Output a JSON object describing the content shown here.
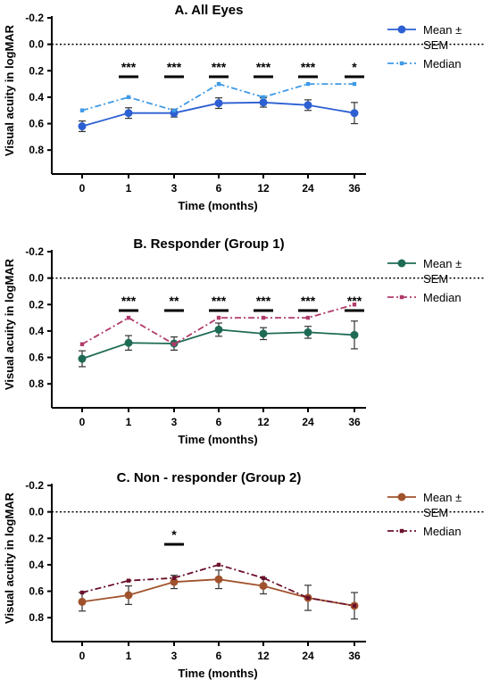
{
  "chart_data": [
    {
      "type": "line",
      "title": "A. All Eyes",
      "xlabel": "Time (months)",
      "ylabel": "Visual acuity in logMAR",
      "categories": [
        "0",
        "1",
        "3",
        "6",
        "12",
        "24",
        "36"
      ],
      "ylim": [
        0.9,
        -0.2
      ],
      "yticks": [
        "-0.2",
        "0.0",
        "0.2",
        "0.4",
        "0.6",
        "0.8"
      ],
      "reference_line": 0.0,
      "series": [
        {
          "name": "Mean ± SEM",
          "color": "#2c5fd2",
          "marker": "circle",
          "style": "solid",
          "values": [
            0.62,
            0.52,
            0.52,
            0.445,
            0.44,
            0.46,
            0.52
          ],
          "errors": [
            0.04,
            0.04,
            0.03,
            0.04,
            0.035,
            0.04,
            0.08
          ]
        },
        {
          "name": "Median",
          "color": "#3f9ae6",
          "marker": "square",
          "style": "dashdot",
          "values": [
            0.5,
            0.4,
            0.5,
            0.3,
            0.4,
            0.3,
            0.3
          ]
        }
      ],
      "significance": [
        {
          "x": "1",
          "label": "***"
        },
        {
          "x": "3",
          "label": "***"
        },
        {
          "x": "6",
          "label": "***"
        },
        {
          "x": "12",
          "label": "***"
        },
        {
          "x": "24",
          "label": "***"
        },
        {
          "x": "36",
          "label": "*"
        }
      ],
      "legend": "right"
    },
    {
      "type": "line",
      "title": "B. Responder (Group 1)",
      "xlabel": "Time (months)",
      "ylabel": "Visual acuity in logMAR",
      "categories": [
        "0",
        "1",
        "3",
        "6",
        "12",
        "24",
        "36"
      ],
      "ylim": [
        0.9,
        -0.2
      ],
      "yticks": [
        "-0.2",
        "0.0",
        "0.2",
        "0.4",
        "0.6",
        "0.8"
      ],
      "reference_line": 0.0,
      "series": [
        {
          "name": "Mean ± SEM",
          "color": "#1e6b55",
          "marker": "circle",
          "style": "solid",
          "values": [
            0.61,
            0.49,
            0.495,
            0.39,
            0.42,
            0.41,
            0.43
          ],
          "errors": [
            0.06,
            0.055,
            0.05,
            0.05,
            0.045,
            0.045,
            0.105
          ]
        },
        {
          "name": "Median",
          "color": "#b03a6b",
          "marker": "square",
          "style": "dashdot",
          "values": [
            0.5,
            0.3,
            0.5,
            0.3,
            0.3,
            0.3,
            0.2
          ]
        }
      ],
      "significance": [
        {
          "x": "1",
          "label": "***"
        },
        {
          "x": "3",
          "label": "**"
        },
        {
          "x": "6",
          "label": "***"
        },
        {
          "x": "12",
          "label": "***"
        },
        {
          "x": "24",
          "label": "***"
        },
        {
          "x": "36",
          "label": "***"
        }
      ],
      "legend": "right"
    },
    {
      "type": "line",
      "title": "C. Non - responder (Group 2)",
      "xlabel": "Time (months)",
      "ylabel": "Visual acuity in logMAR",
      "categories": [
        "0",
        "1",
        "3",
        "6",
        "12",
        "24",
        "36"
      ],
      "ylim": [
        0.9,
        -0.2
      ],
      "yticks": [
        "-0.2",
        "0.0",
        "0.2",
        "0.4",
        "0.6",
        "0.8"
      ],
      "reference_line": 0.0,
      "series": [
        {
          "name": "Mean ± SEM",
          "color": "#a0522d",
          "marker": "circle",
          "style": "solid",
          "values": [
            0.68,
            0.63,
            0.53,
            0.51,
            0.56,
            0.65,
            0.71
          ],
          "errors": [
            0.07,
            0.07,
            0.05,
            0.07,
            0.06,
            0.095,
            0.1
          ]
        },
        {
          "name": "Median",
          "color": "#6b0f2a",
          "marker": "square",
          "style": "dashdot",
          "values": [
            0.61,
            0.52,
            0.5,
            0.4,
            0.5,
            0.65,
            0.71
          ]
        }
      ],
      "significance": [
        {
          "x": "3",
          "label": "*"
        }
      ],
      "legend": "right"
    }
  ]
}
